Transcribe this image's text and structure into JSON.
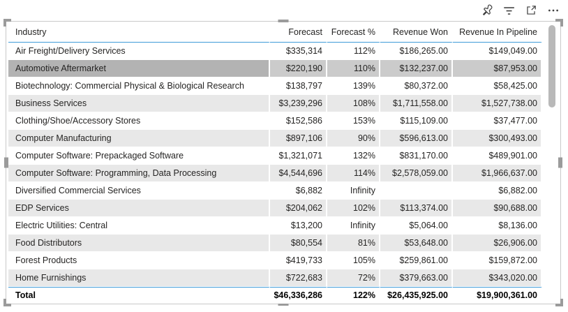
{
  "visual_header": {
    "icons": [
      {
        "name": "pin-visual-icon"
      },
      {
        "name": "filter-icon"
      },
      {
        "name": "focus-mode-icon"
      },
      {
        "name": "more-options-icon"
      }
    ]
  },
  "table": {
    "columns": [
      {
        "label": "Industry",
        "align": "left"
      },
      {
        "label": "Forecast",
        "align": "right"
      },
      {
        "label": "Forecast %",
        "align": "right"
      },
      {
        "label": "Revenue Won",
        "align": "right"
      },
      {
        "label": "Revenue In Pipeline",
        "align": "right"
      }
    ],
    "rows": [
      [
        "Air Freight/Delivery Services",
        "$335,314",
        "112%",
        "$186,265.00",
        "$149,049.00"
      ],
      [
        "Automotive Aftermarket",
        "$220,190",
        "110%",
        "$132,237.00",
        "$87,953.00"
      ],
      [
        "Biotechnology: Commercial Physical & Biological Research",
        "$138,797",
        "139%",
        "$80,372.00",
        "$58,425.00"
      ],
      [
        "Business Services",
        "$3,239,296",
        "108%",
        "$1,711,558.00",
        "$1,527,738.00"
      ],
      [
        "Clothing/Shoe/Accessory Stores",
        "$152,586",
        "153%",
        "$115,109.00",
        "$37,477.00"
      ],
      [
        "Computer Manufacturing",
        "$897,106",
        "90%",
        "$596,613.00",
        "$300,493.00"
      ],
      [
        "Computer Software: Prepackaged Software",
        "$1,321,071",
        "132%",
        "$831,170.00",
        "$489,901.00"
      ],
      [
        "Computer Software: Programming, Data Processing",
        "$4,544,696",
        "114%",
        "$2,578,059.00",
        "$1,966,637.00"
      ],
      [
        "Diversified Commercial Services",
        "$6,882",
        "Infinity",
        "",
        "$6,882.00"
      ],
      [
        "EDP Services",
        "$204,062",
        "102%",
        "$113,374.00",
        "$90,688.00"
      ],
      [
        "Electric Utilities: Central",
        "$13,200",
        "Infinity",
        "$5,064.00",
        "$8,136.00"
      ],
      [
        "Food Distributors",
        "$80,554",
        "81%",
        "$53,648.00",
        "$26,906.00"
      ],
      [
        "Forest Products",
        "$419,733",
        "105%",
        "$259,861.00",
        "$159,872.00"
      ],
      [
        "Home Furnishings",
        "$722,683",
        "72%",
        "$379,663.00",
        "$343,020.00"
      ]
    ],
    "selected_row_index": 1,
    "selected_row_label": "Automotive Aftermarket",
    "total_row": [
      "Total",
      "$46,336,286",
      "122%",
      "$26,435,925.00",
      "$19,900,361.00"
    ]
  },
  "colors": {
    "accent_blue": "#3f9bd8",
    "row_alternate": "#e8e8e8",
    "selected_industry_cell": "#b3b3b3",
    "selected_value_cells": "#cbcbcb",
    "text": "#252423",
    "selection_frame": "#c9c9c9",
    "resize_handle": "#9b9b9b",
    "scrollbar_thumb": "#b9b9b9"
  }
}
